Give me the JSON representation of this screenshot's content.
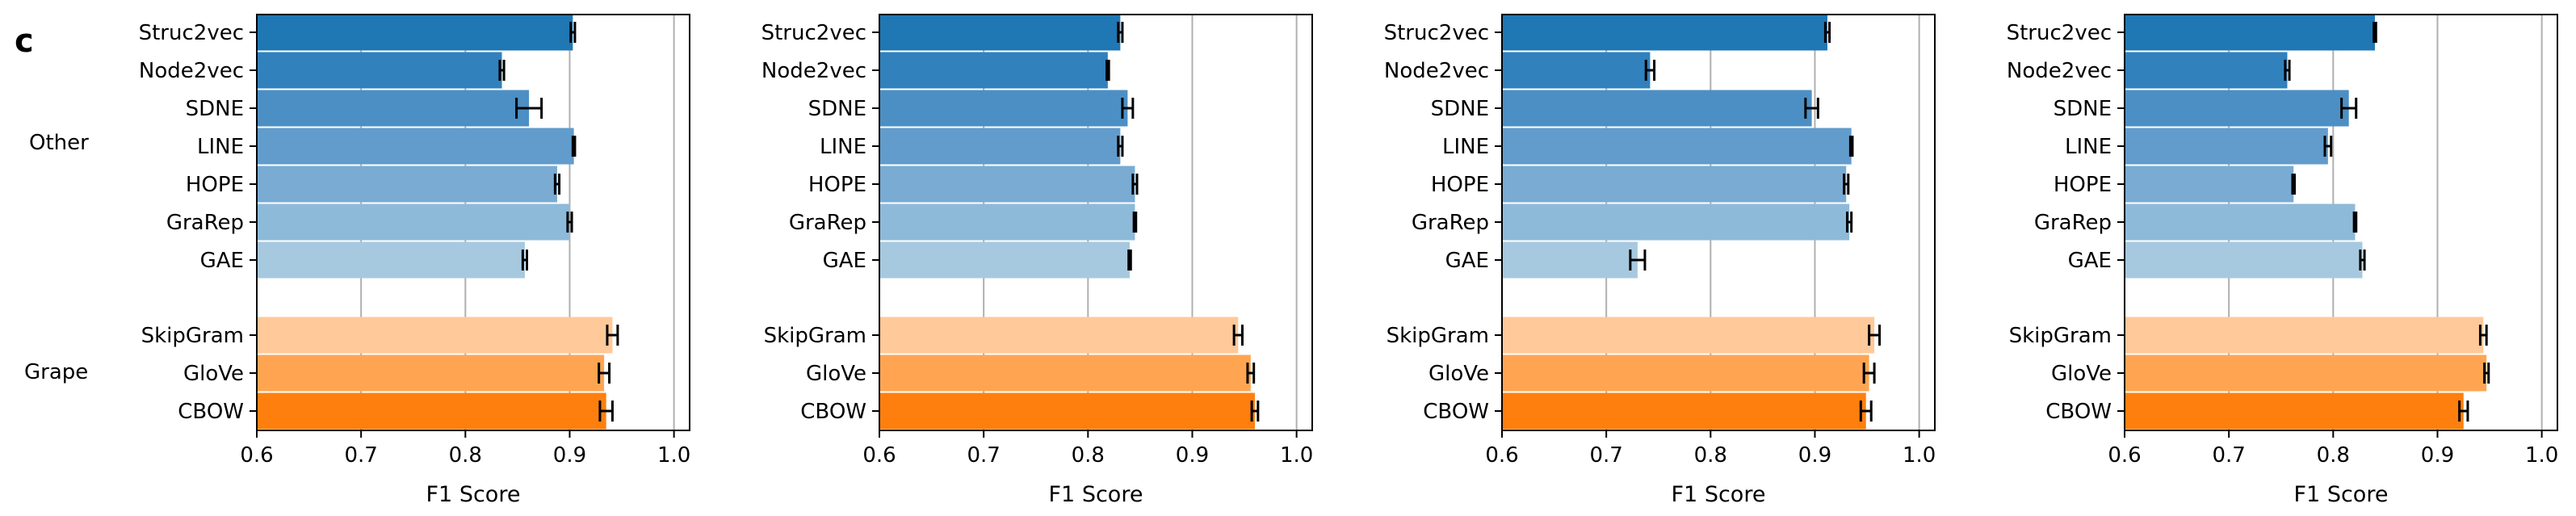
{
  "panel_letter": "c",
  "groups": [
    {
      "name": "Other",
      "members": [
        "Struc2vec",
        "Node2vec",
        "SDNE",
        "LINE",
        "HOPE",
        "GraRep",
        "GAE"
      ]
    },
    {
      "name": "Grape",
      "members": [
        "SkipGram",
        "GloVe",
        "CBOW"
      ]
    }
  ],
  "colors": {
    "Struc2vec": "#1f77b4",
    "Node2vec": "#3181bd",
    "SDNE": "#4c8fc4",
    "LINE": "#619ccc",
    "HOPE": "#79abd3",
    "GraRep": "#8ebad9",
    "GAE": "#a6c9e0",
    "SkipGram": "#ffc999",
    "GloVe": "#ffa552",
    "CBOW": "#ff7f0e",
    "grid": "#b0b0b0",
    "errorbar": "#000000"
  },
  "chart_data": [
    {
      "type": "bar",
      "orientation": "horizontal",
      "categories": [
        "Struc2vec",
        "Node2vec",
        "SDNE",
        "LINE",
        "HOPE",
        "GraRep",
        "GAE",
        "SkipGram",
        "GloVe",
        "CBOW"
      ],
      "values": [
        0.903,
        0.835,
        0.861,
        0.904,
        0.888,
        0.9,
        0.857,
        0.941,
        0.933,
        0.935
      ],
      "errors": [
        0.002,
        0.002,
        0.012,
        0.001,
        0.002,
        0.002,
        0.002,
        0.005,
        0.005,
        0.006
      ],
      "xlabel": "F1 Score",
      "ylabel": "",
      "xlim": [
        0.6,
        1.015
      ],
      "xticks": [
        "0.6",
        "0.7",
        "0.8",
        "0.9",
        "1.0"
      ],
      "grid": "x"
    },
    {
      "type": "bar",
      "orientation": "horizontal",
      "categories": [
        "Struc2vec",
        "Node2vec",
        "SDNE",
        "LINE",
        "HOPE",
        "GraRep",
        "GAE",
        "SkipGram",
        "GloVe",
        "CBOW"
      ],
      "values": [
        0.831,
        0.819,
        0.838,
        0.831,
        0.845,
        0.845,
        0.84,
        0.944,
        0.956,
        0.96
      ],
      "errors": [
        0.002,
        0.001,
        0.005,
        0.002,
        0.002,
        0.001,
        0.001,
        0.004,
        0.003,
        0.003
      ],
      "xlabel": "F1 Score",
      "ylabel": "",
      "xlim": [
        0.6,
        1.015
      ],
      "xticks": [
        "0.6",
        "0.7",
        "0.8",
        "0.9",
        "1.0"
      ],
      "grid": "x"
    },
    {
      "type": "bar",
      "orientation": "horizontal",
      "categories": [
        "Struc2vec",
        "Node2vec",
        "SDNE",
        "LINE",
        "HOPE",
        "GraRep",
        "GAE",
        "SkipGram",
        "GloVe",
        "CBOW"
      ],
      "values": [
        0.912,
        0.742,
        0.897,
        0.935,
        0.93,
        0.933,
        0.73,
        0.957,
        0.952,
        0.949
      ],
      "errors": [
        0.002,
        0.004,
        0.006,
        0.001,
        0.002,
        0.002,
        0.007,
        0.005,
        0.005,
        0.005
      ],
      "xlabel": "F1 Score",
      "ylabel": "",
      "xlim": [
        0.6,
        1.015
      ],
      "xticks": [
        "0.6",
        "0.7",
        "0.8",
        "0.9",
        "1.0"
      ],
      "grid": "x"
    },
    {
      "type": "bar",
      "orientation": "horizontal",
      "categories": [
        "Struc2vec",
        "Node2vec",
        "SDNE",
        "LINE",
        "HOPE",
        "GraRep",
        "GAE",
        "SkipGram",
        "GloVe",
        "CBOW"
      ],
      "values": [
        0.84,
        0.756,
        0.815,
        0.795,
        0.762,
        0.821,
        0.828,
        0.944,
        0.947,
        0.925
      ],
      "errors": [
        0.001,
        0.002,
        0.007,
        0.003,
        0.001,
        0.001,
        0.002,
        0.003,
        0.002,
        0.004
      ],
      "xlabel": "F1 Score",
      "ylabel": "",
      "xlim": [
        0.6,
        1.015
      ],
      "xticks": [
        "0.6",
        "0.7",
        "0.8",
        "0.9",
        "1.0"
      ],
      "grid": "x"
    }
  ]
}
